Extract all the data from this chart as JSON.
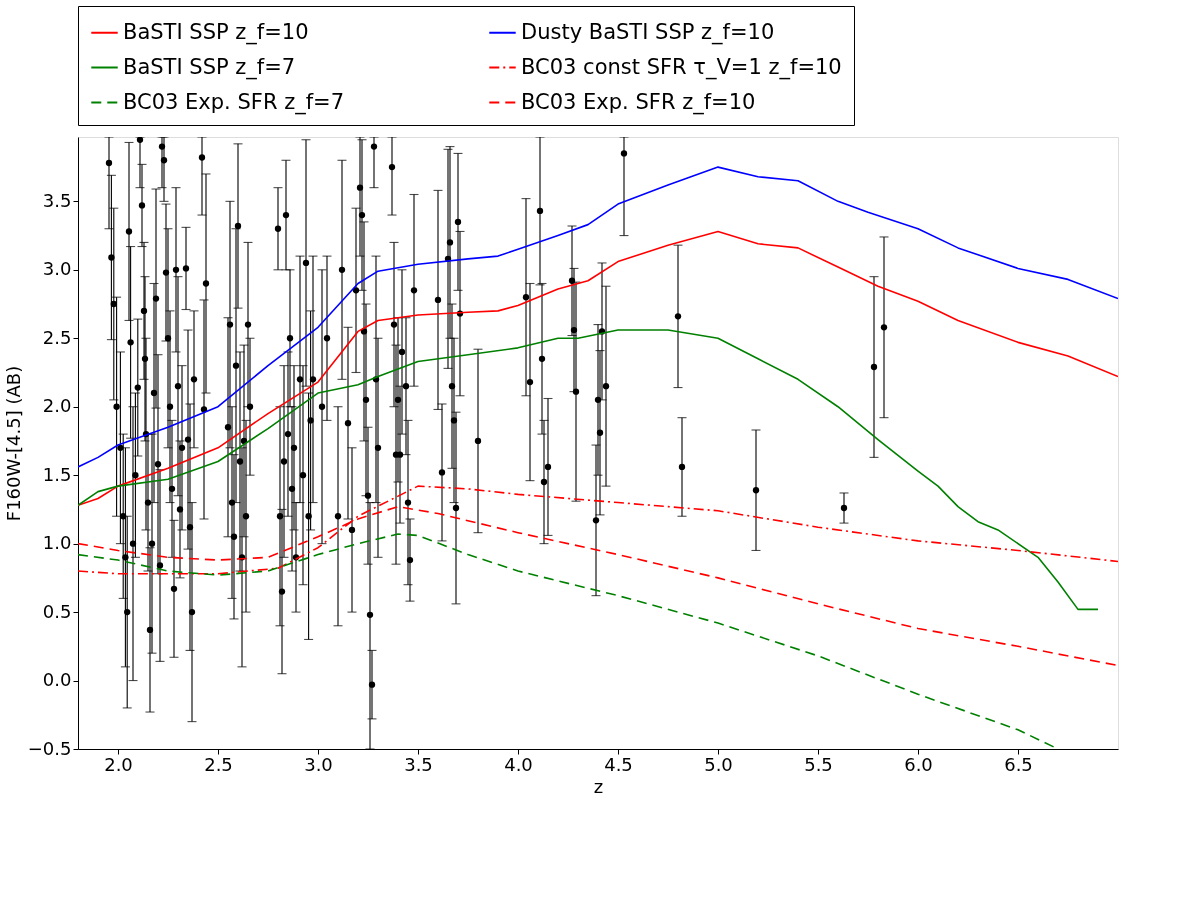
{
  "chart_data": {
    "type": "line",
    "xlabel": "z",
    "ylabel": "F160W-[4.5] (AB)",
    "xlim": [
      1.8,
      7.0
    ],
    "ylim": [
      -0.5,
      3.97
    ],
    "xticks": [
      {
        "value": 2.0,
        "label": "2.0"
      },
      {
        "value": 2.5,
        "label": "2.5"
      },
      {
        "value": 3.0,
        "label": "3.0"
      },
      {
        "value": 3.5,
        "label": "3.5"
      },
      {
        "value": 4.0,
        "label": "4.0"
      },
      {
        "value": 4.5,
        "label": "4.5"
      },
      {
        "value": 5.0,
        "label": "5.0"
      },
      {
        "value": 5.5,
        "label": "5.5"
      },
      {
        "value": 6.0,
        "label": "6.0"
      },
      {
        "value": 6.5,
        "label": "6.5"
      }
    ],
    "yticks": [
      {
        "value": -0.5,
        "label": "−0.5"
      },
      {
        "value": 0.0,
        "label": "0.0"
      },
      {
        "value": 0.5,
        "label": "0.5"
      },
      {
        "value": 1.0,
        "label": "1.0"
      },
      {
        "value": 1.5,
        "label": "1.5"
      },
      {
        "value": 2.0,
        "label": "2.0"
      },
      {
        "value": 2.5,
        "label": "2.5"
      },
      {
        "value": 3.0,
        "label": "3.0"
      },
      {
        "value": 3.5,
        "label": "3.5"
      }
    ],
    "grid": false,
    "legend": "top",
    "series": [
      {
        "name": "BaSTI SSP z_f=10",
        "color": "#ff0000",
        "line_style": "solid",
        "marker": "none",
        "x": [
          1.8,
          1.9,
          2.0,
          2.25,
          2.5,
          2.75,
          3.0,
          3.2,
          3.3,
          3.5,
          3.75,
          3.9,
          4.0,
          4.2,
          4.35,
          4.5,
          4.75,
          5.0,
          5.2,
          5.4,
          5.6,
          5.8,
          6.0,
          6.2,
          6.5,
          6.75,
          7.0
        ],
        "values": [
          1.28,
          1.33,
          1.42,
          1.55,
          1.7,
          1.95,
          2.18,
          2.55,
          2.63,
          2.67,
          2.69,
          2.7,
          2.74,
          2.86,
          2.92,
          3.06,
          3.18,
          3.28,
          3.19,
          3.16,
          3.02,
          2.88,
          2.77,
          2.63,
          2.47,
          2.37,
          2.22
        ]
      },
      {
        "name": "Dusty BaSTI SSP z_f=10",
        "color": "#0000ff",
        "line_style": "solid",
        "marker": "none",
        "x": [
          1.8,
          1.9,
          2.0,
          2.25,
          2.5,
          2.75,
          3.0,
          3.2,
          3.3,
          3.5,
          3.75,
          3.9,
          4.0,
          4.2,
          4.35,
          4.5,
          4.75,
          5.0,
          5.2,
          5.4,
          5.6,
          5.75,
          6.0,
          6.2,
          6.5,
          6.75,
          7.0
        ],
        "values": [
          1.56,
          1.63,
          1.72,
          1.85,
          2.0,
          2.3,
          2.58,
          2.9,
          2.99,
          3.04,
          3.08,
          3.1,
          3.15,
          3.25,
          3.33,
          3.48,
          3.62,
          3.75,
          3.68,
          3.65,
          3.5,
          3.42,
          3.3,
          3.16,
          3.01,
          2.93,
          2.79
        ]
      },
      {
        "name": "BaSTI SSP z_f=7",
        "color": "#008000",
        "line_style": "solid",
        "marker": "none",
        "x": [
          1.8,
          1.9,
          2.0,
          2.25,
          2.5,
          2.75,
          3.0,
          3.2,
          3.3,
          3.5,
          3.75,
          4.0,
          4.2,
          4.3,
          4.5,
          4.75,
          5.0,
          5.2,
          5.4,
          5.6,
          5.8,
          6.0,
          6.1,
          6.2,
          6.3,
          6.4,
          6.6,
          6.7,
          6.8,
          6.9
        ],
        "values": [
          1.28,
          1.38,
          1.42,
          1.47,
          1.6,
          1.84,
          2.1,
          2.16,
          2.22,
          2.33,
          2.38,
          2.43,
          2.5,
          2.5,
          2.56,
          2.56,
          2.5,
          2.35,
          2.2,
          2.0,
          1.76,
          1.53,
          1.42,
          1.27,
          1.16,
          1.1,
          0.9,
          0.72,
          0.52,
          0.52
        ]
      },
      {
        "name": "BC03 const SFR τ_V=1 z_f=10",
        "color": "#ff0000",
        "line_style": "dashdot",
        "marker": "none",
        "x": [
          1.8,
          2.0,
          2.5,
          2.8,
          3.0,
          3.2,
          3.5,
          3.75,
          4.0,
          4.5,
          5.0,
          5.5,
          6.0,
          6.5,
          7.0
        ],
        "values": [
          0.8,
          0.78,
          0.78,
          0.82,
          0.97,
          1.2,
          1.42,
          1.4,
          1.36,
          1.3,
          1.24,
          1.12,
          1.02,
          0.95,
          0.87
        ]
      },
      {
        "name": "BC03 Exp. SFR z_f=7",
        "color": "#008000",
        "line_style": "dashed",
        "marker": "none",
        "x": [
          1.8,
          2.0,
          2.25,
          2.5,
          2.75,
          3.0,
          3.2,
          3.4,
          3.5,
          3.75,
          4.0,
          4.5,
          5.0,
          5.5,
          6.0,
          6.5,
          6.7
        ],
        "values": [
          0.92,
          0.88,
          0.8,
          0.77,
          0.8,
          0.92,
          1.0,
          1.07,
          1.06,
          0.92,
          0.8,
          0.62,
          0.42,
          0.18,
          -0.1,
          -0.36,
          -0.5
        ]
      },
      {
        "name": "BC03 Exp. SFR z_f=10",
        "color": "#ff0000",
        "line_style": "dashed",
        "marker": "none",
        "x": [
          1.8,
          2.0,
          2.25,
          2.5,
          2.75,
          3.0,
          3.2,
          3.4,
          3.6,
          4.0,
          4.5,
          5.0,
          5.5,
          6.0,
          6.5,
          7.0
        ],
        "values": [
          1.0,
          0.95,
          0.9,
          0.88,
          0.9,
          1.05,
          1.18,
          1.27,
          1.22,
          1.08,
          0.92,
          0.75,
          0.56,
          0.38,
          0.25,
          0.11
        ]
      },
      {
        "type": "scatter",
        "color": "#000000",
        "marker": "circle",
        "x": [
          1.955,
          1.967,
          1.979,
          1.993,
          2.012,
          2.026,
          2.037,
          2.046,
          2.055,
          2.063,
          2.075,
          2.087,
          2.099,
          2.11,
          2.12,
          2.13,
          2.135,
          2.14,
          2.15,
          2.16,
          2.17,
          2.18,
          2.19,
          2.2,
          2.21,
          2.22,
          2.23,
          2.24,
          2.25,
          2.26,
          2.27,
          2.28,
          2.29,
          2.3,
          2.31,
          2.32,
          2.34,
          2.35,
          2.36,
          2.37,
          2.38,
          2.42,
          2.43,
          2.44,
          2.55,
          2.56,
          2.57,
          2.58,
          2.59,
          2.6,
          2.61,
          2.62,
          2.63,
          2.64,
          2.65,
          2.66,
          2.8,
          2.81,
          2.82,
          2.83,
          2.84,
          2.85,
          2.86,
          2.87,
          2.88,
          2.89,
          2.91,
          2.925,
          2.94,
          2.953,
          2.963,
          2.975,
          3.045,
          3.02,
          3.1,
          3.12,
          3.15,
          3.17,
          3.19,
          3.21,
          3.22,
          3.23,
          3.24,
          3.25,
          3.26,
          3.27,
          3.28,
          3.29,
          3.3,
          3.37,
          3.38,
          3.39,
          3.4,
          3.41,
          3.42,
          3.44,
          3.45,
          3.46,
          3.48,
          3.6,
          3.62,
          3.65,
          3.66,
          3.67,
          3.68,
          3.69,
          3.7,
          3.71,
          3.8,
          4.04,
          4.06,
          4.11,
          4.12,
          4.13,
          4.15,
          4.27,
          4.28,
          4.29,
          4.39,
          4.4,
          4.41,
          4.42,
          4.44,
          4.53,
          4.8,
          4.82,
          5.19,
          5.63,
          5.78,
          5.83
        ],
        "values": [
          3.78,
          3.09,
          2.75,
          2.0,
          1.7,
          1.2,
          0.9,
          0.5,
          3.28,
          2.47,
          1.0,
          1.5,
          2.14,
          3.95,
          3.47,
          2.7,
          2.35,
          1.8,
          1.3,
          0.37,
          1.0,
          2.1,
          2.79,
          1.58,
          0.84,
          3.9,
          3.8,
          2.98,
          2.5,
          2.0,
          1.4,
          0.67,
          3.0,
          2.15,
          1.25,
          1.7,
          3.01,
          1.76,
          1.12,
          0.5,
          2.2,
          3.82,
          1.98,
          2.9,
          1.85,
          2.6,
          1.3,
          1.05,
          2.3,
          3.32,
          1.6,
          0.9,
          1.75,
          1.2,
          2.6,
          2.0,
          3.3,
          1.2,
          0.65,
          1.6,
          3.4,
          1.8,
          2.5,
          1.4,
          1.7,
          0.9,
          2.2,
          1.5,
          3.05,
          1.2,
          1.9,
          2.2,
          2.5,
          2.0,
          1.2,
          3.0,
          1.88,
          1.1,
          2.85,
          3.6,
          3.4,
          2.55,
          2.05,
          1.35,
          0.48,
          -0.03,
          3.9,
          2.2,
          1.7,
          3.75,
          2.6,
          1.65,
          2.05,
          1.65,
          2.4,
          2.15,
          1.3,
          0.88,
          2.85,
          2.78,
          1.52,
          3.08,
          3.2,
          2.15,
          1.9,
          1.26,
          3.35,
          2.68,
          1.75,
          2.8,
          2.18,
          3.43,
          2.35,
          1.45,
          1.56,
          2.92,
          2.56,
          2.11,
          1.17,
          2.05,
          1.81,
          2.55,
          2.15,
          3.85,
          2.66,
          1.56,
          1.39,
          1.26,
          2.29,
          2.58
        ],
        "errors": [
          [
            3.3,
            3.97
          ],
          0.6,
          0.7,
          0.8,
          0.7,
          0.6,
          0.8,
          0.7,
          0.65,
          0.7,
          1.0,
          0.6,
          0.5,
          [
            3.6,
            3.97
          ],
          0.3,
          0.5,
          0.6,
          0.7,
          0.5,
          0.6,
          0.8,
          0.8,
          0.8,
          0.8,
          0.7,
          [
            3.6,
            3.97
          ],
          [
            3.5,
            3.97
          ],
          0.5,
          0.8,
          0.7,
          0.5,
          0.5,
          0.6,
          0.8,
          0.5,
          0.6,
          0.3,
          0.8,
          0.9,
          0.8,
          0.5,
          [
            3.4,
            3.97
          ],
          0.8,
          0.8,
          0.8,
          0.9,
          0.7,
          0.6,
          1.0,
          0.6,
          0.8,
          0.8,
          0.7,
          0.7,
          0.6,
          0.5,
          0.3,
          0.8,
          0.6,
          0.7,
          0.4,
          0.6,
          0.5,
          0.6,
          0.6,
          0.4,
          0.9,
          0.8,
          0.9,
          0.9,
          0.8,
          0.9,
          0.6,
          1.0,
          0.8,
          0.8,
          0.7,
          0.6,
          0.6,
          [
            3.1,
            3.97
          ],
          0.55,
          0.8,
          0.7,
          0.5,
          [
            -0.5,
            1.3
          ],
          [
            -0.28,
            0.22
          ],
          [
            3.6,
            3.97
          ],
          0.9,
          0.8,
          [
            3.4,
            3.97
          ],
          0.6,
          0.8,
          0.6,
          0.5,
          0.6,
          0.5,
          0.6,
          0.3,
          0.7,
          0.8,
          0.5,
          0.8,
          0.7,
          0.6,
          0.6,
          0.7,
          0.5,
          0.6,
          0.67,
          0.72,
          0.72,
          0.54,
          0.55,
          0.45,
          0.5,
          0.4,
          0.45,
          0.8,
          0.55,
          0.55,
          0.6,
          0.5,
          0.73,
          [
            3.25,
            3.97
          ],
          0.52,
          0.36,
          0.44,
          0.11,
          0.66,
          0.66
        ]
      }
    ]
  }
}
